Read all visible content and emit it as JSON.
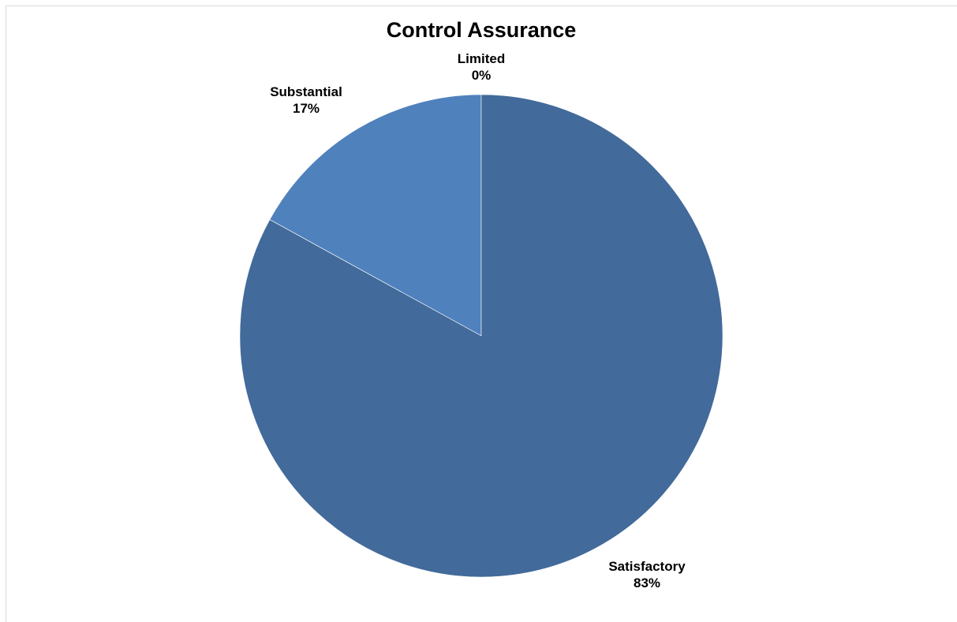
{
  "chart_data": {
    "type": "pie",
    "title": "Control Assurance",
    "slices": [
      {
        "label": "Limited",
        "percent_label": "0%",
        "value": 0,
        "color": "#4a72a8"
      },
      {
        "label": "Substantial",
        "percent_label": "17%",
        "value": 17,
        "color": "#4f81bd"
      },
      {
        "label": "Satisfactory",
        "percent_label": "83%",
        "value": 83,
        "color": "#426a9a"
      }
    ],
    "start_angle": "12 o'clock",
    "direction": "counter-clockwise",
    "legend": "none"
  }
}
